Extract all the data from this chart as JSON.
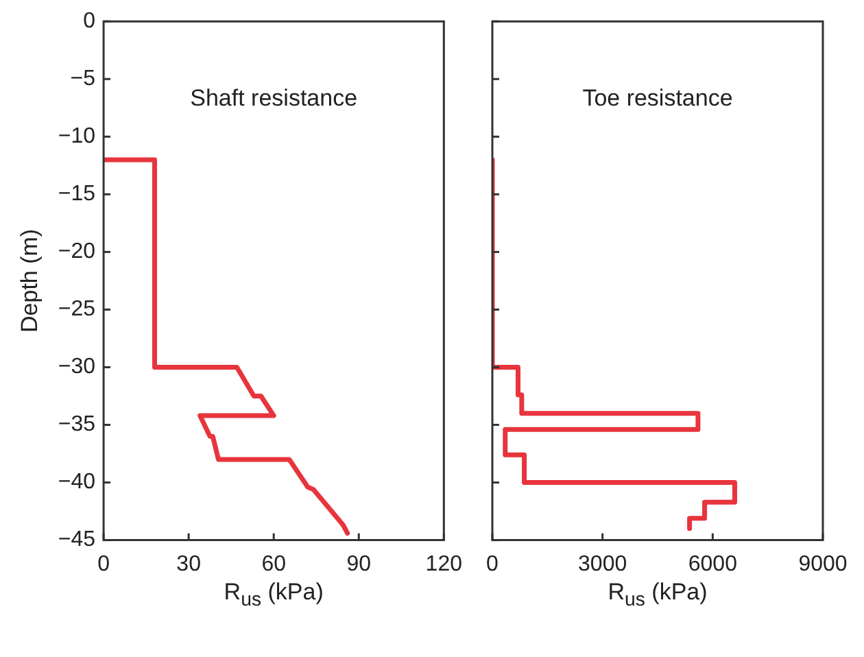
{
  "chart_data": [
    {
      "type": "line",
      "ylabel": "Depth (m)",
      "xlabel": "R$_{us}$ (kPa)",
      "annotations": [
        "Shaft resistance"
      ],
      "xlim": [
        0,
        120
      ],
      "xticks": [
        0,
        30,
        60,
        90,
        120
      ],
      "ylim": [
        -45,
        0
      ],
      "yticks": [
        0,
        -5,
        -10,
        -15,
        -20,
        -25,
        -30,
        -35,
        -40,
        -45
      ],
      "marker": "none",
      "series": [
        {
          "color": "#e8343c",
          "x": [
            0,
            18,
            18,
            47,
            53,
            55.5,
            60,
            34,
            37.5,
            38.5,
            40.5,
            65.5,
            72,
            74,
            82.5,
            84.5,
            86
          ],
          "values": [
            -12,
            -12,
            -30,
            -30,
            -32.5,
            -32.5,
            -34.2,
            -34.2,
            -36,
            -36,
            -38,
            -38,
            -40.4,
            -40.6,
            -43.1,
            -43.7,
            -44.4
          ]
        }
      ]
    },
    {
      "type": "line",
      "xlabel": "R$_{us}$ (kPa)",
      "annotations": [
        "Toe resistance"
      ],
      "xlim": [
        0,
        9000
      ],
      "xticks": [
        0,
        3000,
        6000,
        9000
      ],
      "ylim": [
        -45,
        0
      ],
      "yticks": [
        0,
        -5,
        -10,
        -15,
        -20,
        -25,
        -30,
        -35,
        -40,
        -45
      ],
      "tick_labels": "x",
      "marker": "none",
      "series": [
        {
          "color": "#e8343c",
          "x": [
            0,
            0,
            700,
            700,
            800,
            800,
            5600,
            5600,
            350,
            350,
            870,
            870,
            6600,
            6600,
            5780,
            5780,
            5370,
            5370
          ],
          "values": [
            -12,
            -30,
            -30,
            -32.4,
            -32.4,
            -34,
            -34,
            -35.4,
            -35.4,
            -37.6,
            -37.6,
            -40,
            -40,
            -41.7,
            -41.7,
            -43.1,
            -43.1,
            -44
          ]
        }
      ]
    }
  ]
}
